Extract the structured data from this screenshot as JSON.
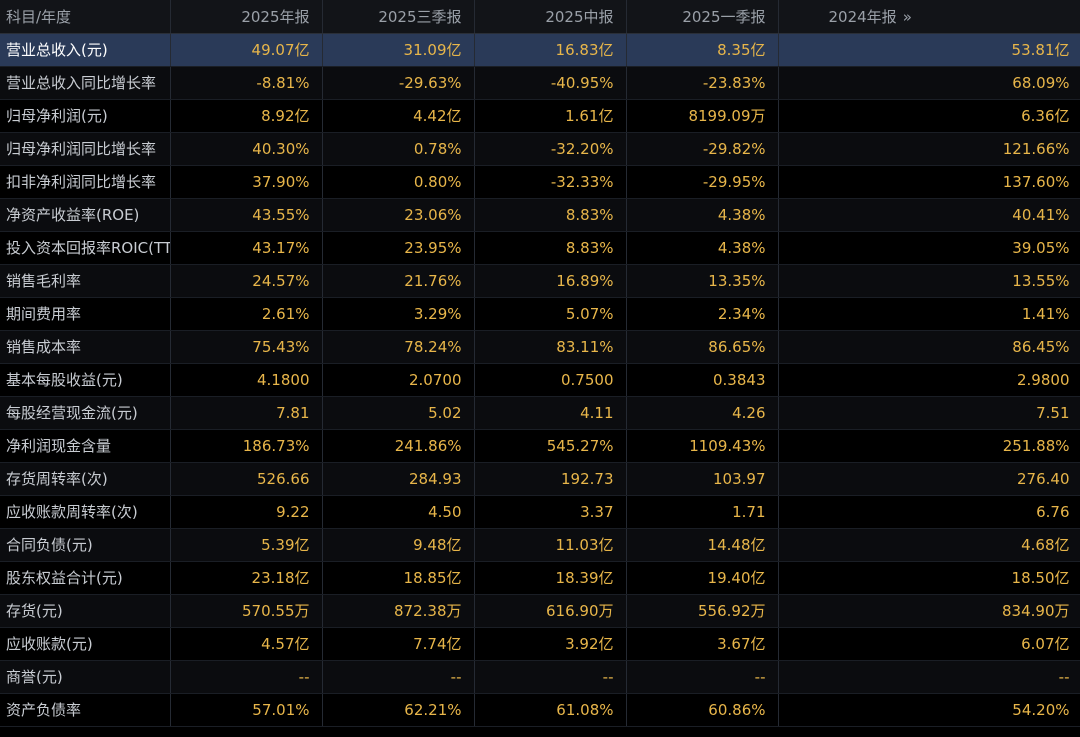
{
  "header": {
    "label": "科目/年度",
    "columns": [
      "2025年报",
      "2025三季报",
      "2025中报",
      "2025一季报",
      "2024年报"
    ],
    "more_icon": "»"
  },
  "rows": [
    {
      "label": "营业总收入(元)",
      "values": [
        "49.07亿",
        "31.09亿",
        "16.83亿",
        "8.35亿",
        "53.81亿"
      ]
    },
    {
      "label": "营业总收入同比增长率",
      "values": [
        "-8.81%",
        "-29.63%",
        "-40.95%",
        "-23.83%",
        "68.09%"
      ]
    },
    {
      "label": "归母净利润(元)",
      "values": [
        "8.92亿",
        "4.42亿",
        "1.61亿",
        "8199.09万",
        "6.36亿"
      ]
    },
    {
      "label": "归母净利润同比增长率",
      "values": [
        "40.30%",
        "0.78%",
        "-32.20%",
        "-29.82%",
        "121.66%"
      ]
    },
    {
      "label": "扣非净利润同比增长率",
      "values": [
        "37.90%",
        "0.80%",
        "-32.33%",
        "-29.95%",
        "137.60%"
      ]
    },
    {
      "label": "净资产收益率(ROE)",
      "values": [
        "43.55%",
        "23.06%",
        "8.83%",
        "4.38%",
        "40.41%"
      ]
    },
    {
      "label": "投入资本回报率ROIC(TTM)",
      "values": [
        "43.17%",
        "23.95%",
        "8.83%",
        "4.38%",
        "39.05%"
      ]
    },
    {
      "label": "销售毛利率",
      "values": [
        "24.57%",
        "21.76%",
        "16.89%",
        "13.35%",
        "13.55%"
      ]
    },
    {
      "label": "期间费用率",
      "values": [
        "2.61%",
        "3.29%",
        "5.07%",
        "2.34%",
        "1.41%"
      ]
    },
    {
      "label": "销售成本率",
      "values": [
        "75.43%",
        "78.24%",
        "83.11%",
        "86.65%",
        "86.45%"
      ]
    },
    {
      "label": "基本每股收益(元)",
      "values": [
        "4.1800",
        "2.0700",
        "0.7500",
        "0.3843",
        "2.9800"
      ]
    },
    {
      "label": "每股经营现金流(元)",
      "values": [
        "7.81",
        "5.02",
        "4.11",
        "4.26",
        "7.51"
      ]
    },
    {
      "label": "净利润现金含量",
      "values": [
        "186.73%",
        "241.86%",
        "545.27%",
        "1109.43%",
        "251.88%"
      ]
    },
    {
      "label": "存货周转率(次)",
      "values": [
        "526.66",
        "284.93",
        "192.73",
        "103.97",
        "276.40"
      ]
    },
    {
      "label": "应收账款周转率(次)",
      "values": [
        "9.22",
        "4.50",
        "3.37",
        "1.71",
        "6.76"
      ]
    },
    {
      "label": "合同负债(元)",
      "values": [
        "5.39亿",
        "9.48亿",
        "11.03亿",
        "14.48亿",
        "4.68亿"
      ]
    },
    {
      "label": "股东权益合计(元)",
      "values": [
        "23.18亿",
        "18.85亿",
        "18.39亿",
        "19.40亿",
        "18.50亿"
      ]
    },
    {
      "label": "存货(元)",
      "values": [
        "570.55万",
        "872.38万",
        "616.90万",
        "556.92万",
        "834.90万"
      ]
    },
    {
      "label": "应收账款(元)",
      "values": [
        "4.57亿",
        "7.74亿",
        "3.92亿",
        "3.67亿",
        "6.07亿"
      ]
    },
    {
      "label": "商誉(元)",
      "values": [
        "--",
        "--",
        "--",
        "--",
        "--"
      ]
    },
    {
      "label": "资产负债率",
      "values": [
        "57.01%",
        "62.21%",
        "61.08%",
        "60.86%",
        "54.20%"
      ]
    }
  ],
  "colors": {
    "background": "#000000",
    "header_bg": "#121418",
    "header_text": "#9aa0a8",
    "label_text": "#c8ccd2",
    "value_text": "#e8b64a",
    "selected_row_bg": "#2a3a58"
  }
}
